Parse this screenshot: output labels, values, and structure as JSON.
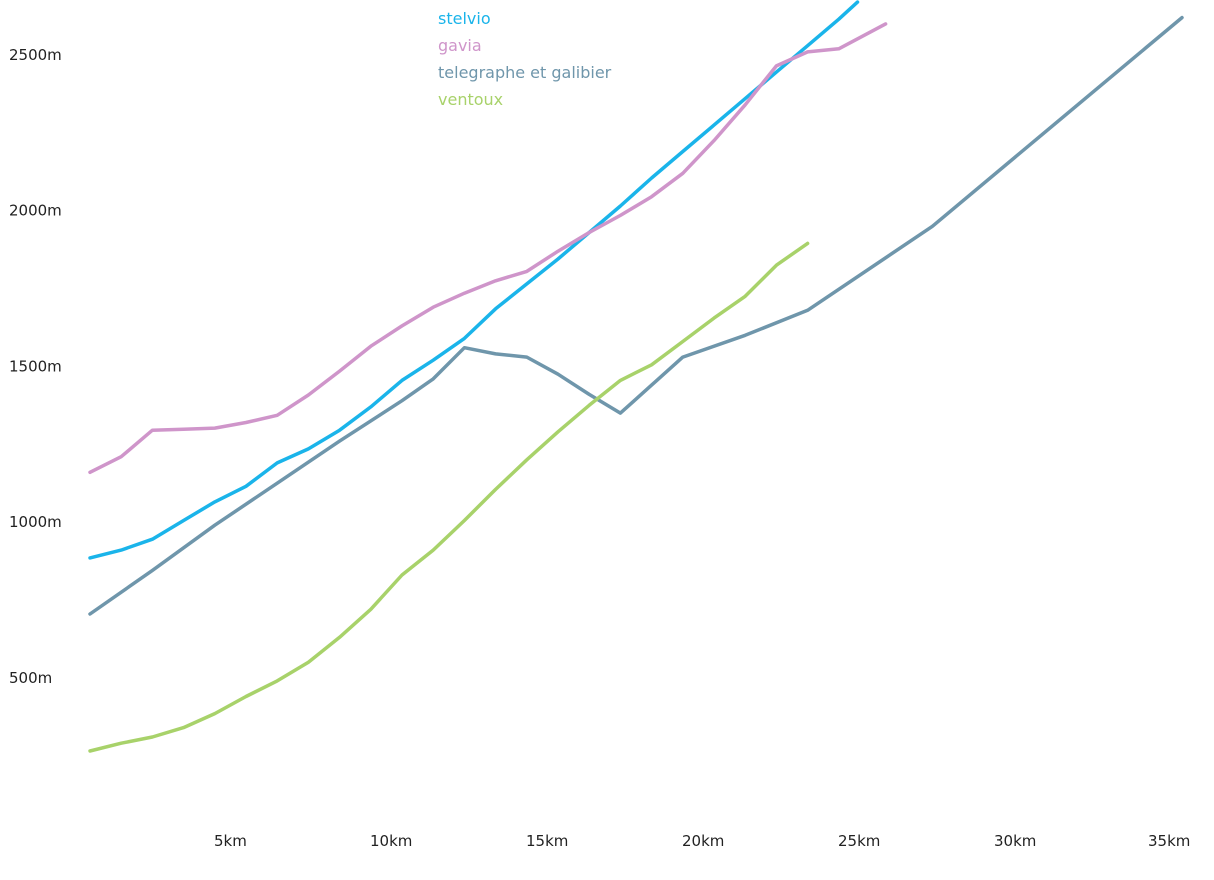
{
  "chart_data": {
    "type": "line",
    "title": "",
    "xlabel": "",
    "ylabel": "",
    "xlim": [
      0,
      35
    ],
    "ylim": [
      0,
      2700
    ],
    "grid": false,
    "legend_position": "top-center",
    "x_ticks": [
      {
        "value": 5,
        "label": "5km"
      },
      {
        "value": 10,
        "label": "10km"
      },
      {
        "value": 15,
        "label": "15km"
      },
      {
        "value": 20,
        "label": "20km"
      },
      {
        "value": 25,
        "label": "25km"
      },
      {
        "value": 30,
        "label": "30km"
      },
      {
        "value": 35,
        "label": "35km"
      }
    ],
    "y_ticks": [
      {
        "value": 500,
        "label": "500m"
      },
      {
        "value": 1000,
        "label": "1000m"
      },
      {
        "value": 1500,
        "label": "1500m"
      },
      {
        "value": 2000,
        "label": "2000m"
      },
      {
        "value": 2500,
        "label": "2500m"
      }
    ],
    "series": [
      {
        "name": "stelvio",
        "color": "#1ab4ea",
        "points": [
          [
            0,
            885
          ],
          [
            1,
            910
          ],
          [
            2,
            945
          ],
          [
            3,
            1005
          ],
          [
            4,
            1065
          ],
          [
            5,
            1115
          ],
          [
            6,
            1190
          ],
          [
            7,
            1235
          ],
          [
            8,
            1295
          ],
          [
            9,
            1370
          ],
          [
            10,
            1455
          ],
          [
            11,
            1520
          ],
          [
            12,
            1590
          ],
          [
            13,
            1685
          ],
          [
            14,
            1765
          ],
          [
            15,
            1845
          ],
          [
            16,
            1930
          ],
          [
            17,
            2015
          ],
          [
            18,
            2105
          ],
          [
            19,
            2190
          ],
          [
            20,
            2275
          ],
          [
            21,
            2360
          ],
          [
            22,
            2445
          ],
          [
            23,
            2530
          ],
          [
            24,
            2615
          ],
          [
            24.6,
            2670
          ]
        ]
      },
      {
        "name": "gavia",
        "color": "#cf95ca",
        "points": [
          [
            0,
            1160
          ],
          [
            1,
            1210
          ],
          [
            2,
            1295
          ],
          [
            3,
            1298
          ],
          [
            4,
            1302
          ],
          [
            5,
            1320
          ],
          [
            6,
            1343
          ],
          [
            7,
            1408
          ],
          [
            8,
            1485
          ],
          [
            9,
            1565
          ],
          [
            10,
            1630
          ],
          [
            11,
            1690
          ],
          [
            12,
            1735
          ],
          [
            13,
            1775
          ],
          [
            14,
            1805
          ],
          [
            15,
            1870
          ],
          [
            16,
            1930
          ],
          [
            17,
            1985
          ],
          [
            18,
            2045
          ],
          [
            19,
            2120
          ],
          [
            20,
            2225
          ],
          [
            21,
            2340
          ],
          [
            22,
            2465
          ],
          [
            23,
            2510
          ],
          [
            24,
            2520
          ],
          [
            25.5,
            2600
          ]
        ]
      },
      {
        "name": "telegraphe et galibier",
        "color": "#6f96ab",
        "points": [
          [
            0,
            705
          ],
          [
            2,
            845
          ],
          [
            4,
            990
          ],
          [
            6,
            1125
          ],
          [
            8,
            1260
          ],
          [
            10,
            1390
          ],
          [
            11,
            1460
          ],
          [
            12,
            1560
          ],
          [
            13,
            1540
          ],
          [
            14,
            1530
          ],
          [
            15,
            1475
          ],
          [
            16,
            1410
          ],
          [
            17,
            1350
          ],
          [
            18,
            1440
          ],
          [
            19,
            1530
          ],
          [
            21,
            1600
          ],
          [
            23,
            1680
          ],
          [
            27,
            1950
          ],
          [
            35,
            2620
          ]
        ]
      },
      {
        "name": "ventoux",
        "color": "#a8d26a",
        "points": [
          [
            0,
            265
          ],
          [
            1,
            290
          ],
          [
            2,
            310
          ],
          [
            3,
            340
          ],
          [
            4,
            385
          ],
          [
            5,
            440
          ],
          [
            6,
            490
          ],
          [
            7,
            550
          ],
          [
            8,
            630
          ],
          [
            9,
            720
          ],
          [
            10,
            830
          ],
          [
            11,
            910
          ],
          [
            12,
            1005
          ],
          [
            13,
            1105
          ],
          [
            14,
            1200
          ],
          [
            15,
            1290
          ],
          [
            16,
            1375
          ],
          [
            17,
            1455
          ],
          [
            18,
            1505
          ],
          [
            19,
            1580
          ],
          [
            20,
            1655
          ],
          [
            21,
            1725
          ],
          [
            22,
            1825
          ],
          [
            23,
            1895
          ]
        ]
      }
    ]
  }
}
